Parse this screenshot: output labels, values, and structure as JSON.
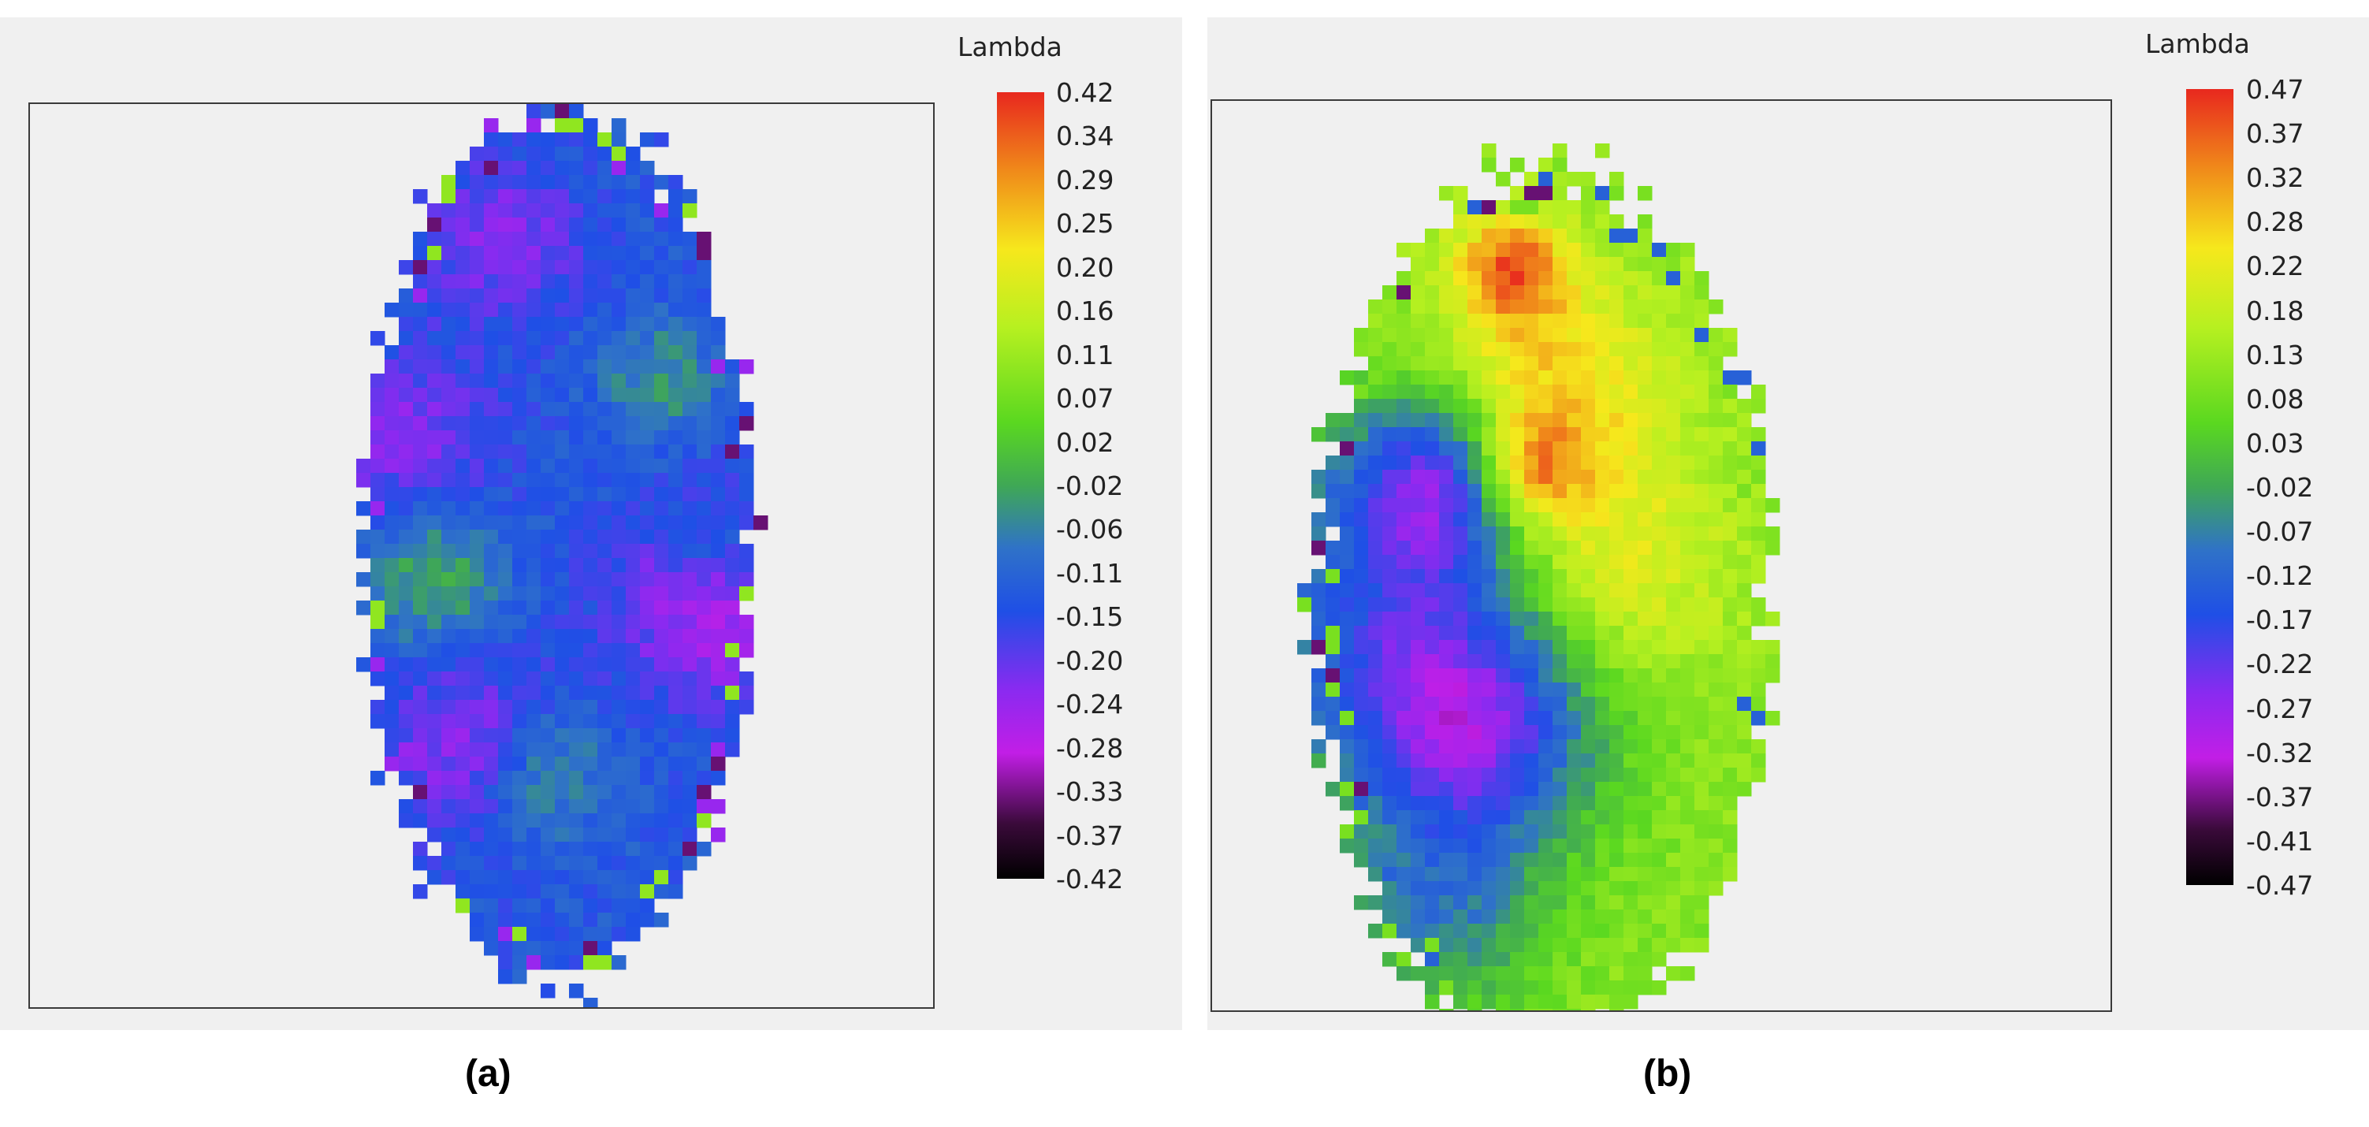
{
  "chart_data": [
    {
      "type": "heatmap",
      "caption": "(a)",
      "colorbar": {
        "title": "Lambda",
        "range": [
          -0.42,
          0.42
        ],
        "ticks": [
          "0.42",
          "0.34",
          "0.29",
          "0.25",
          "0.20",
          "0.16",
          "0.11",
          "0.07",
          "0.02",
          "-0.02",
          "-0.06",
          "-0.11",
          "-0.15",
          "-0.20",
          "-0.24",
          "-0.28",
          "-0.33",
          "-0.37",
          "-0.42"
        ]
      },
      "region": {
        "shape": "elongated vertical ellipse",
        "dominant_values": "mostly -0.02 to -0.20 (blue/purple) with scattered 0.02–0.11 (green) patches"
      }
    },
    {
      "type": "heatmap",
      "caption": "(b)",
      "colorbar": {
        "title": "Lambda",
        "range": [
          -0.47,
          0.47
        ],
        "ticks": [
          "0.47",
          "0.37",
          "0.32",
          "0.28",
          "0.22",
          "0.18",
          "0.13",
          "0.08",
          "0.03",
          "-0.02",
          "-0.07",
          "-0.12",
          "-0.17",
          "-0.22",
          "-0.27",
          "-0.32",
          "-0.37",
          "-0.41",
          "-0.47"
        ]
      },
      "region": {
        "shape": "tilted elongated ellipse",
        "dominant_values": "green/yellow (0.08–0.28) on the right with red hotspots (~0.40) near the top; blue/purple (-0.07 to -0.27) lobe on the left"
      }
    }
  ],
  "colors": {
    "panel_bg": "#f0f0f0",
    "frame": "#3a3a3a",
    "scale": [
      "#e8281e",
      "#f08a1a",
      "#f6e81c",
      "#b6f020",
      "#5ad820",
      "#3fa855",
      "#2f72c8",
      "#1f4fe6",
      "#8a2af0",
      "#c21ee6",
      "#3a0a3a",
      "#000000"
    ]
  }
}
